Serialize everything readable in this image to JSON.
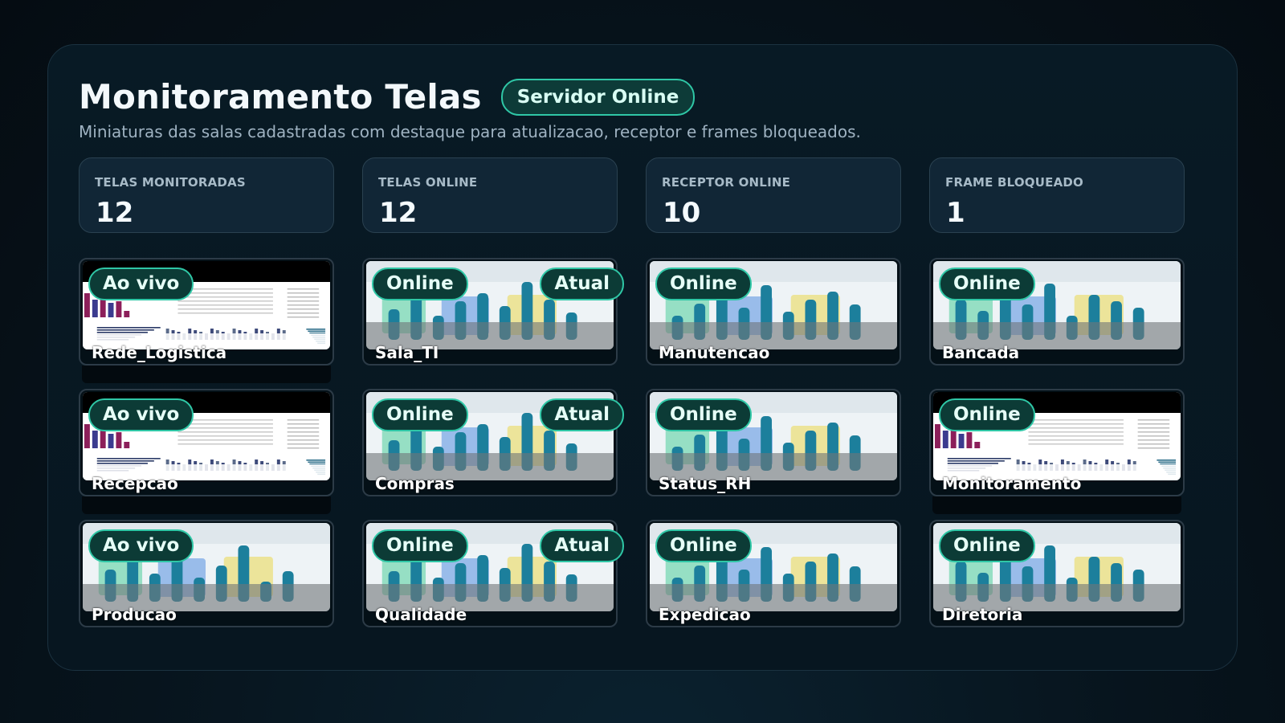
{
  "header": {
    "title": "Monitoramento Telas",
    "server_status": "Servidor Online",
    "subtitle": "Miniaturas das salas cadastradas com destaque para atualizacao, receptor e frames bloqueados."
  },
  "stats": [
    {
      "label": "TELAS MONITORADAS",
      "value": "12"
    },
    {
      "label": "TELAS ONLINE",
      "value": "12"
    },
    {
      "label": "RECEPTOR ONLINE",
      "value": "10"
    },
    {
      "label": "FRAME BLOQUEADO",
      "value": "1"
    }
  ],
  "tiles": [
    {
      "name": "Rede_Logistica",
      "status": "Ao vivo",
      "tag": "",
      "thumb": "report"
    },
    {
      "name": "Sala_TI",
      "status": "Online",
      "tag": "Atual",
      "thumb": "bars"
    },
    {
      "name": "Manutencao",
      "status": "Online",
      "tag": "",
      "thumb": "bars"
    },
    {
      "name": "Bancada",
      "status": "Online",
      "tag": "",
      "thumb": "bars"
    },
    {
      "name": "Recepcao",
      "status": "Ao vivo",
      "tag": "",
      "thumb": "report"
    },
    {
      "name": "Compras",
      "status": "Online",
      "tag": "Atual",
      "thumb": "bars"
    },
    {
      "name": "Status_RH",
      "status": "Online",
      "tag": "",
      "thumb": "bars"
    },
    {
      "name": "Monitoramento",
      "status": "Online",
      "tag": "",
      "thumb": "report"
    },
    {
      "name": "Producao",
      "status": "Ao vivo",
      "tag": "",
      "thumb": "bars"
    },
    {
      "name": "Qualidade",
      "status": "Online",
      "tag": "Atual",
      "thumb": "bars"
    },
    {
      "name": "Expedicao",
      "status": "Online",
      "tag": "",
      "thumb": "bars"
    },
    {
      "name": "Diretoria",
      "status": "Online",
      "tag": "",
      "thumb": "bars"
    }
  ],
  "colors": {
    "accent": "#2fc7a6",
    "bar": "#1c7f9c",
    "panel": "#081a25"
  }
}
